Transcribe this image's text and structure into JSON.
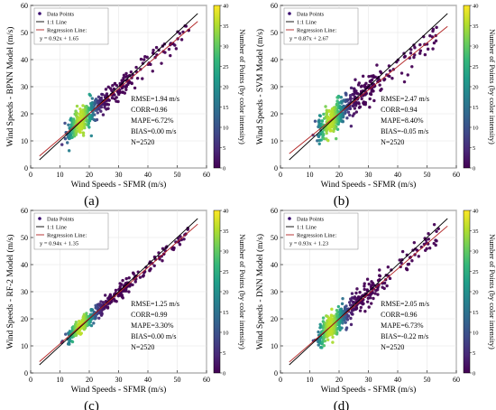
{
  "colors": {
    "one_to_one": "#000000",
    "regression": "#b22222",
    "points": "#3b0f70",
    "colormap": [
      "#440154",
      "#482878",
      "#3e4a89",
      "#31688e",
      "#26828e",
      "#1f9e89",
      "#35b779",
      "#6ece58",
      "#b5de2b",
      "#fde725"
    ]
  },
  "chart_data": [
    {
      "type": "scatter",
      "panel_label": "(a)",
      "xlabel": "Wind Speeds - SFMR (m/s)",
      "ylabel": "Wind Speeds - BPNN Model (m/s)",
      "colorbar_label": "Number of Points (by color intensity)",
      "colorbar_ticks": [
        "0",
        "5",
        "10",
        "15",
        "20",
        "25",
        "30",
        "35",
        "40"
      ],
      "colorbar_range": [
        0,
        40
      ],
      "xlim": [
        0,
        60
      ],
      "ylim": [
        0,
        60
      ],
      "xticks": [
        "0",
        "10",
        "20",
        "30",
        "40",
        "50",
        "60"
      ],
      "yticks": [
        "0",
        "10",
        "20",
        "30",
        "40",
        "50",
        "60"
      ],
      "legend": {
        "position": "top-left",
        "points": "Data Points",
        "one_to_one": "1:1 Line",
        "regression": "Regression Line:",
        "equation": "y = 0.92x + 1.65"
      },
      "regression": {
        "slope": 0.92,
        "intercept": 1.65
      },
      "stats": [
        "RMSE=1.94 m/s",
        "CORR=0.96",
        "MAPE=6.72%",
        "BIAS=0.00 m/s",
        "N=2520"
      ],
      "spread": 2.2,
      "grid": true
    },
    {
      "type": "scatter",
      "panel_label": "(b)",
      "xlabel": "Wind Speeds - SFMR (m/s)",
      "ylabel": "Wind Speeds - SVM Model (m/s)",
      "colorbar_label": "Number of Points (by color intensity)",
      "colorbar_ticks": [
        "0",
        "5",
        "10",
        "15",
        "20",
        "25",
        "30",
        "35",
        "40"
      ],
      "colorbar_range": [
        0,
        40
      ],
      "xlim": [
        0,
        60
      ],
      "ylim": [
        0,
        60
      ],
      "xticks": [
        "0",
        "10",
        "20",
        "30",
        "40",
        "50",
        "60"
      ],
      "yticks": [
        "0",
        "10",
        "20",
        "30",
        "40",
        "50",
        "60"
      ],
      "legend": {
        "position": "top-left",
        "points": "Data Points",
        "one_to_one": "1:1 Line",
        "regression": "Regression Line:",
        "equation": "y = 0.87x + 2.67"
      },
      "regression": {
        "slope": 0.87,
        "intercept": 2.67
      },
      "stats": [
        "RMSE=2.47 m/s",
        "CORR=0.94",
        "MAPE=8.40%",
        "BIAS=-0.05 m/s",
        "N=2520"
      ],
      "spread": 2.8,
      "grid": true
    },
    {
      "type": "scatter",
      "panel_label": "(c)",
      "xlabel": "Wind Speeds - SFMR (m/s)",
      "ylabel": "Wind Speeds - RF-2 Model (m/s)",
      "colorbar_label": "Number of Points (by color intensity)",
      "colorbar_ticks": [
        "0",
        "5",
        "10",
        "15",
        "20",
        "25",
        "30",
        "35",
        "40"
      ],
      "colorbar_range": [
        0,
        40
      ],
      "xlim": [
        0,
        60
      ],
      "ylim": [
        0,
        60
      ],
      "xticks": [
        "0",
        "10",
        "20",
        "30",
        "40",
        "50",
        "60"
      ],
      "yticks": [
        "0",
        "10",
        "20",
        "30",
        "40",
        "50",
        "60"
      ],
      "legend": {
        "position": "top-left",
        "points": "Data Points",
        "one_to_one": "1:1 Line",
        "regression": "Regression Line:",
        "equation": "y = 0.94x + 1.35"
      },
      "regression": {
        "slope": 0.94,
        "intercept": 1.35
      },
      "stats": [
        "RMSE=1.25 m/s",
        "CORR=0.99",
        "MAPE=3.30%",
        "BIAS=0.00 m/s",
        "N=2520"
      ],
      "spread": 1.3,
      "grid": true
    },
    {
      "type": "scatter",
      "panel_label": "(d)",
      "xlabel": "Wind Speeds - SFMR (m/s)",
      "ylabel": "Wind Speeds - DNN Model (m/s)",
      "colorbar_label": "Number of Points (by color intensity)",
      "colorbar_ticks": [
        "0",
        "5",
        "10",
        "15",
        "20",
        "25",
        "30",
        "35",
        "40"
      ],
      "colorbar_range": [
        0,
        40
      ],
      "xlim": [
        0,
        60
      ],
      "ylim": [
        0,
        60
      ],
      "xticks": [
        "0",
        "10",
        "20",
        "30",
        "40",
        "50",
        "60"
      ],
      "yticks": [
        "0",
        "10",
        "20",
        "30",
        "40",
        "50",
        "60"
      ],
      "legend": {
        "position": "top-left",
        "points": "Data Points",
        "one_to_one": "1:1 Line",
        "regression": "Regression Line:",
        "equation": "y = 0.93x + 1.23"
      },
      "regression": {
        "slope": 0.93,
        "intercept": 1.23
      },
      "stats": [
        "RMSE=2.05 m/s",
        "CORR=0.96",
        "MAPE=6.73%",
        "BIAS=-0.22 m/s",
        "N=2520"
      ],
      "spread": 2.3,
      "grid": true
    }
  ]
}
